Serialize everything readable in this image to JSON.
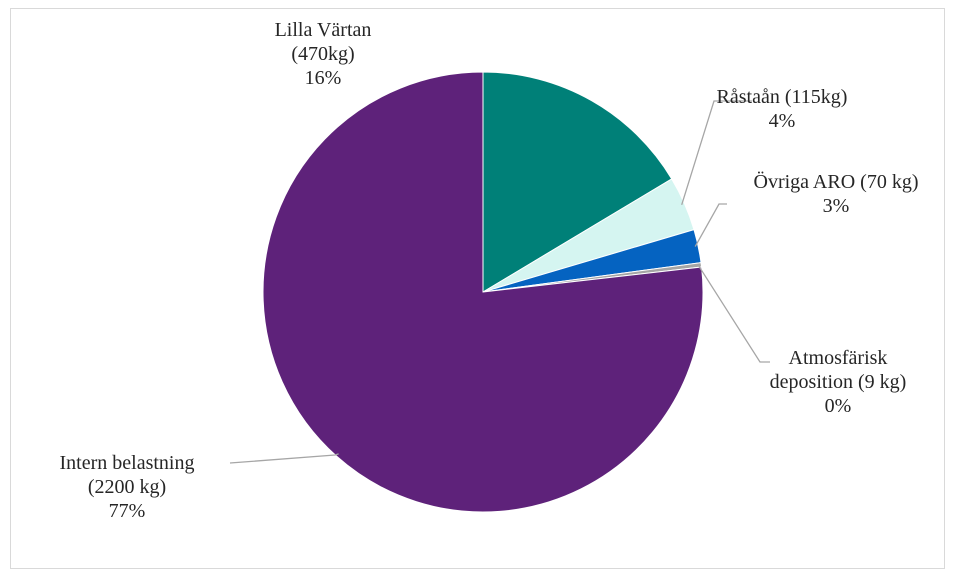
{
  "chart_data": {
    "type": "pie",
    "slices": [
      {
        "name": "Lilla Värtan",
        "value": 470,
        "percent": 16,
        "color": "#008078",
        "label_lines": [
          "Lilla Värtan",
          "(470kg)",
          "16%"
        ]
      },
      {
        "name": "Råstaån",
        "value": 115,
        "percent": 4,
        "color": "#d5f5f1",
        "label_lines": [
          "Råstaån (115kg)",
          "4%"
        ]
      },
      {
        "name": "Övriga ARO",
        "value": 70,
        "percent": 3,
        "color": "#0563c1",
        "label_lines": [
          "Övriga ARO (70 kg)",
          "3%"
        ]
      },
      {
        "name": "Atmosfärisk deposition",
        "value": 9,
        "percent": 0,
        "color": "#a5a5a5",
        "label_lines": [
          "Atmosfärisk",
          "deposition (9 kg)",
          "0%"
        ]
      },
      {
        "name": "Intern belastning",
        "value": 2200,
        "percent": 77,
        "color": "#5e227a",
        "label_lines": [
          "Intern belastning",
          "(2200 kg)",
          "77%"
        ]
      }
    ],
    "start_angle": "12 o'clock",
    "direction": "clockwise",
    "legend": "none"
  }
}
